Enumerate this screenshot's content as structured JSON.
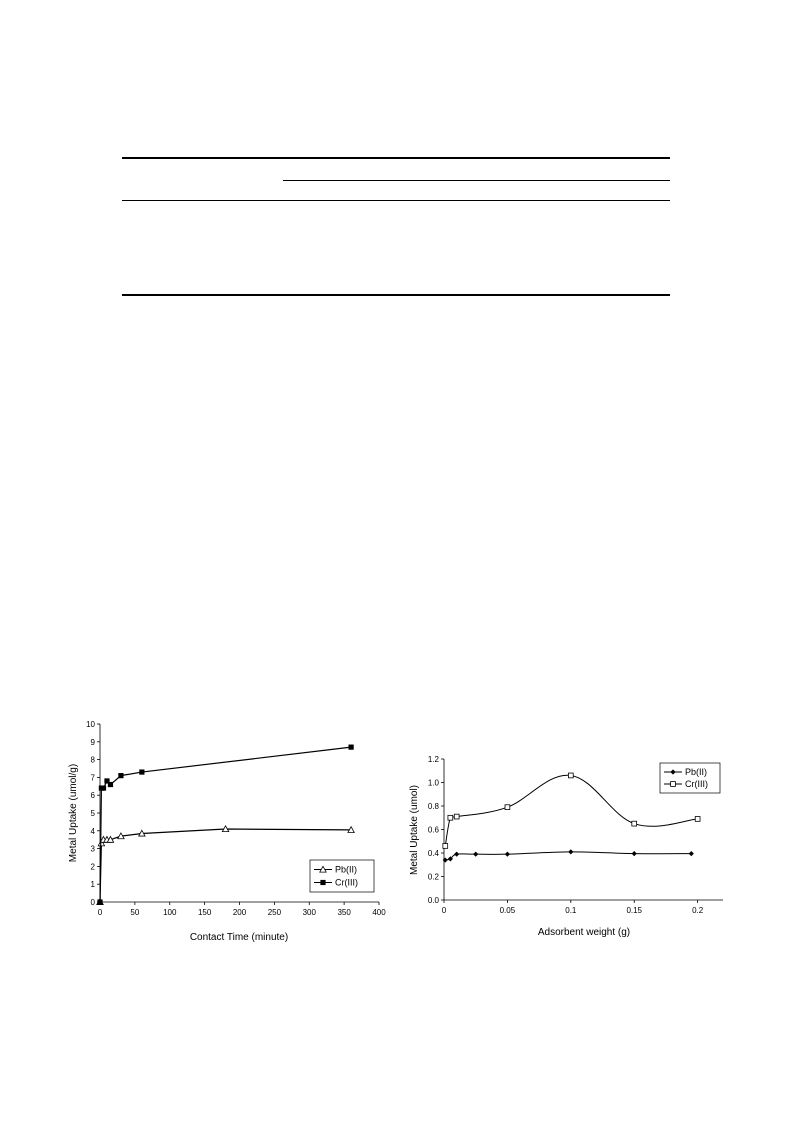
{
  "chart_data": [
    {
      "type": "line",
      "xlabel": "Contact Time (minute)",
      "ylabel": "Metal Uptake  (umol/g)",
      "xlim": [
        0,
        400
      ],
      "ylim": [
        0,
        10
      ],
      "xticks": [
        "0",
        "50",
        "100",
        "150",
        "200",
        "250",
        "300",
        "350",
        "400"
      ],
      "yticks": [
        "0",
        "1",
        "2",
        "3",
        "4",
        "5",
        "6",
        "7",
        "8",
        "9",
        "10"
      ],
      "grid": false,
      "legend_position": "bottom-right",
      "series": [
        {
          "name": "Pb(II)",
          "marker": "open-triangle",
          "x": [
            0,
            2,
            5,
            10,
            15,
            30,
            60,
            180,
            360
          ],
          "y": [
            0,
            3.3,
            3.5,
            3.5,
            3.5,
            3.7,
            3.85,
            4.1,
            4.05
          ]
        },
        {
          "name": "Cr(III)",
          "marker": "filled-square",
          "x": [
            0,
            2,
            5,
            10,
            15,
            30,
            60,
            360
          ],
          "y": [
            0,
            6.4,
            6.4,
            6.8,
            6.6,
            7.1,
            7.3,
            8.7
          ]
        }
      ]
    },
    {
      "type": "line",
      "xlabel": "Adsorbent weight (g)",
      "ylabel": "Metal Uptake (umol)",
      "xlim": [
        0,
        0.22
      ],
      "ylim": [
        0,
        1.2
      ],
      "xticks": [
        "0",
        "0.05",
        "0.1",
        "0.15",
        "0.2"
      ],
      "yticks": [
        "0.0",
        "0.2",
        "0.4",
        "0.6",
        "0.8",
        "1.0",
        "1.2"
      ],
      "grid": false,
      "smooth": true,
      "legend_position": "top-right",
      "series": [
        {
          "name": "Pb(II)",
          "marker": "filled-diamond",
          "x": [
            0.001,
            0.005,
            0.01,
            0.025,
            0.05,
            0.1,
            0.15,
            0.195
          ],
          "y": [
            0.34,
            0.35,
            0.39,
            0.39,
            0.39,
            0.41,
            0.395,
            0.395
          ]
        },
        {
          "name": "Cr(III)",
          "marker": "open-square",
          "x": [
            0.001,
            0.005,
            0.01,
            0.05,
            0.1,
            0.15,
            0.2
          ],
          "y": [
            0.46,
            0.7,
            0.71,
            0.79,
            1.06,
            0.65,
            0.69
          ]
        }
      ]
    }
  ]
}
